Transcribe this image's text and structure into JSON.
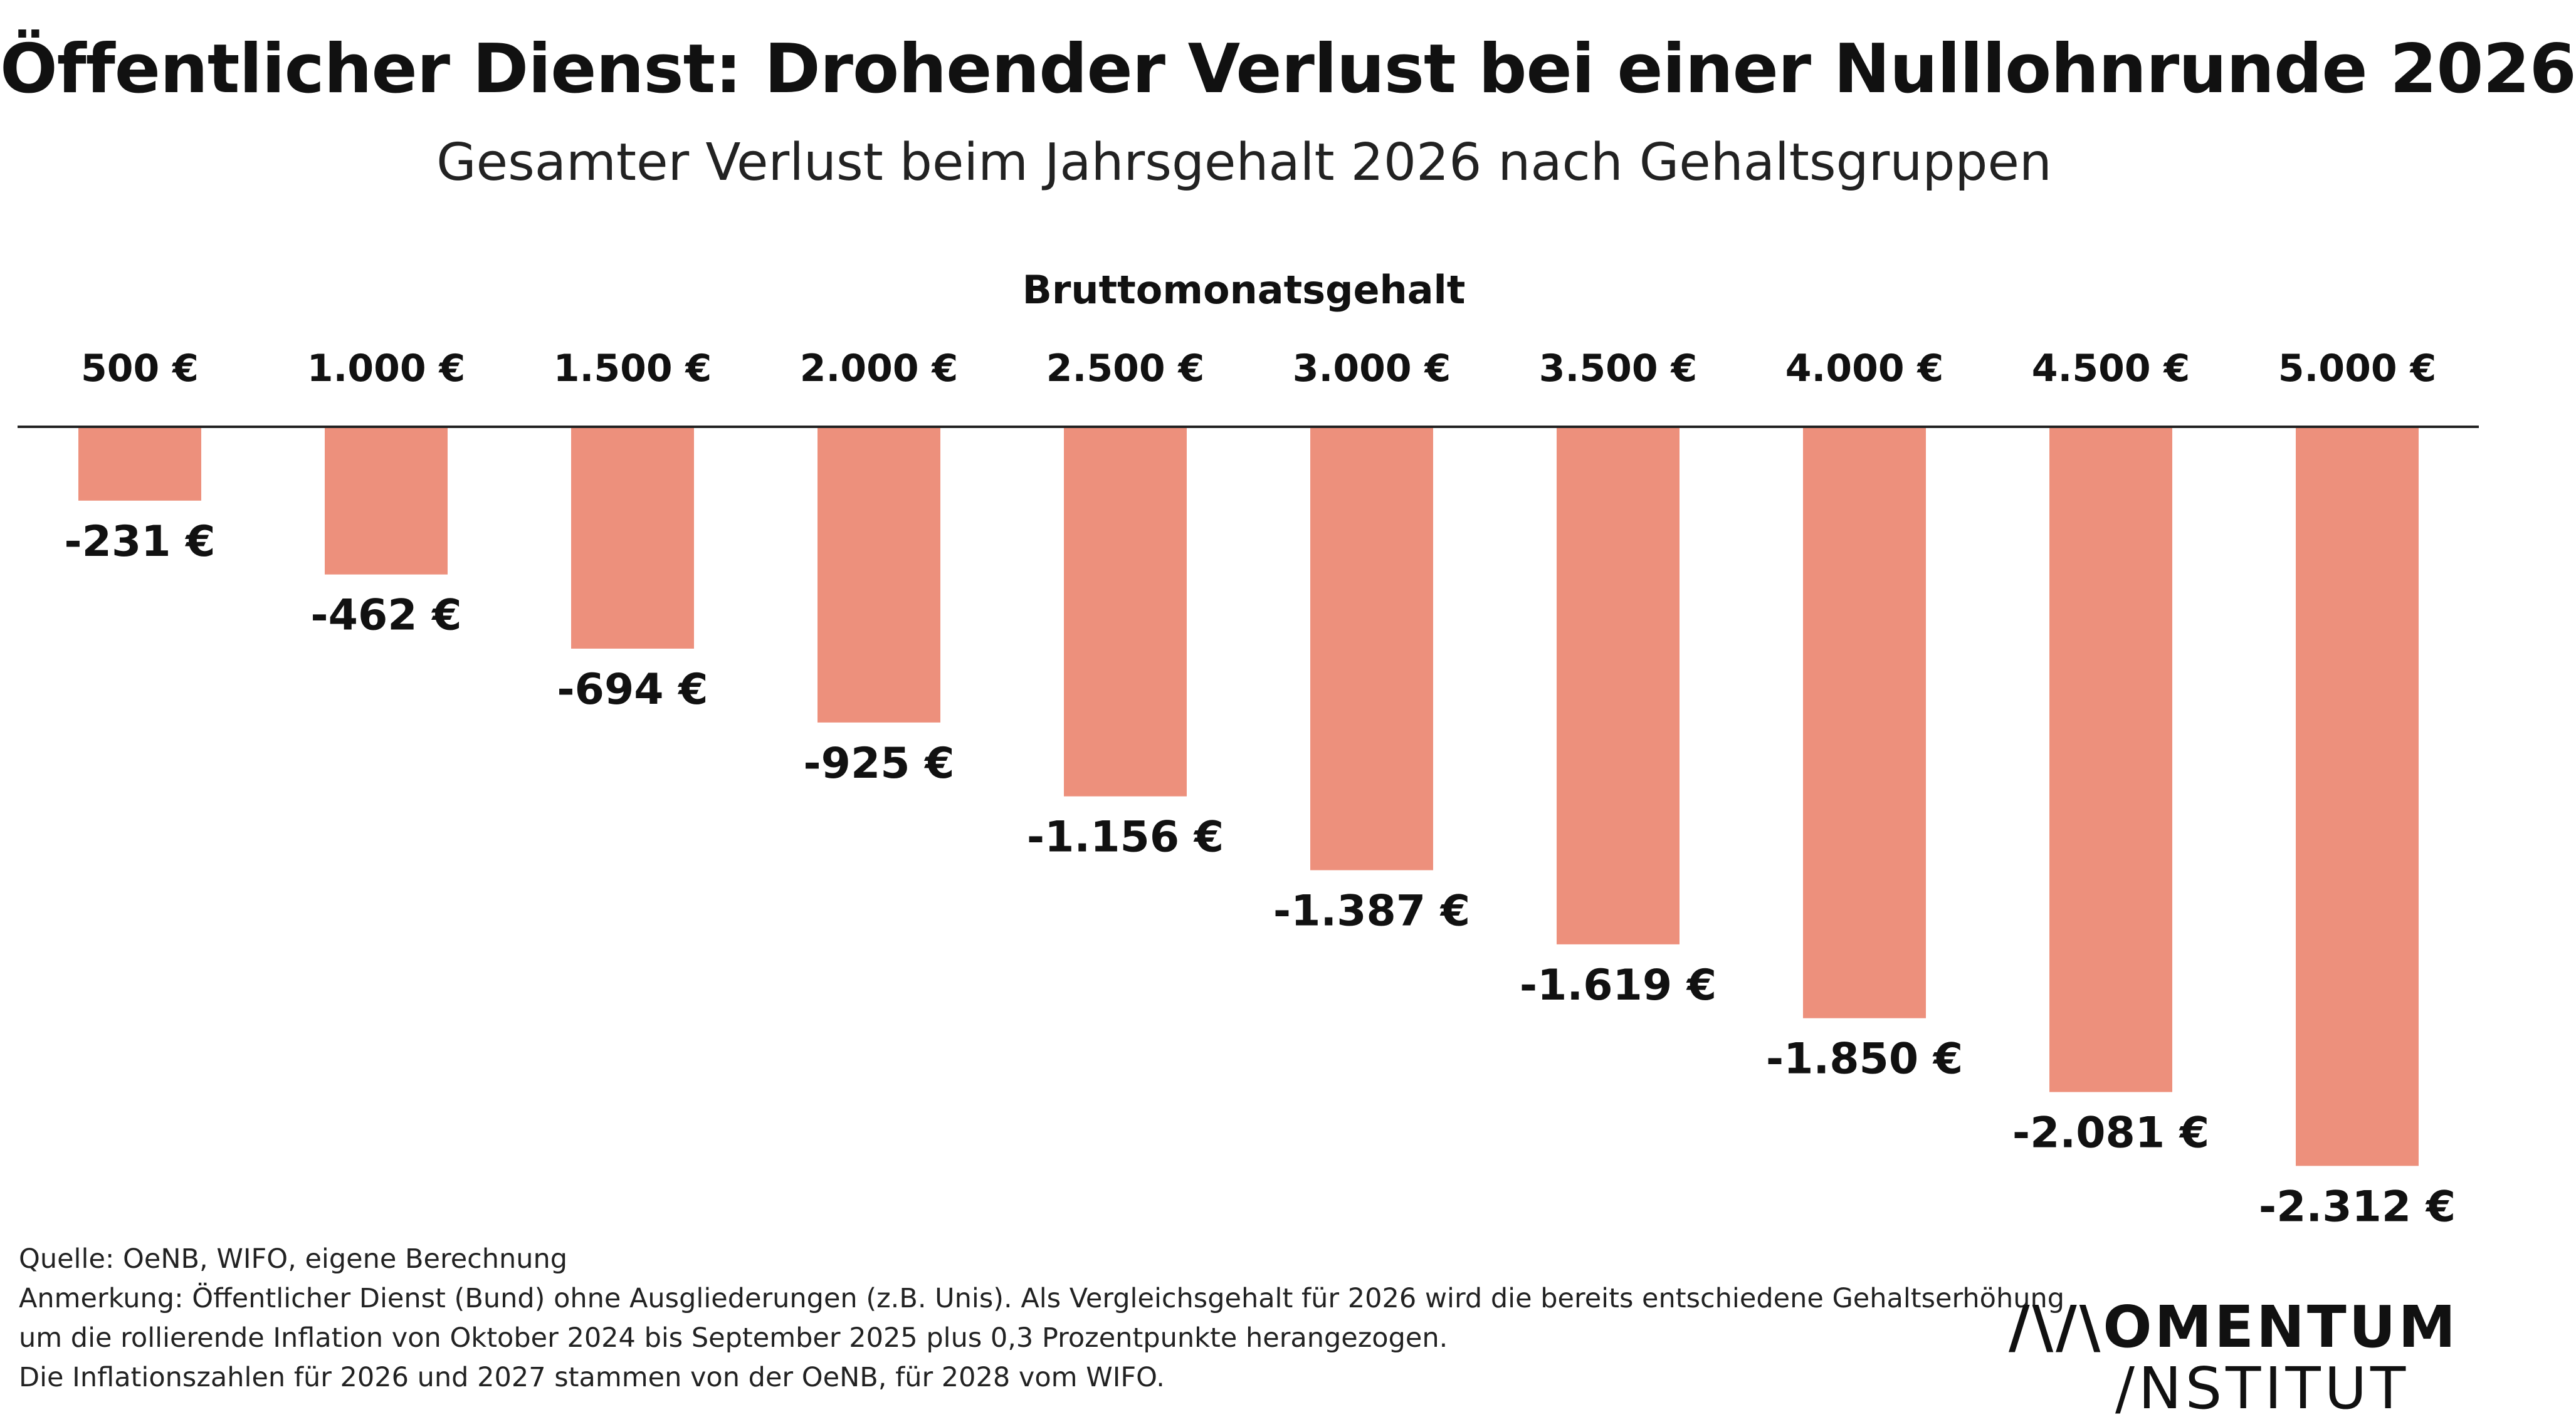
{
  "title": "Öffentlicher Dienst: Drohender Verlust bei einer Nulllohnrunde 2026",
  "subtitle": "Gesamter Verlust beim Jahrsgehalt 2026 nach Gehaltsgruppen",
  "chart_data": {
    "type": "bar",
    "orientation": "vertical, bars hanging down from top baseline",
    "x_axis_title": "Bruttomonatsgehalt",
    "categories": [
      "500 €",
      "1.000 €",
      "1.500 €",
      "2.000 €",
      "2.500 €",
      "3.000 €",
      "3.500 €",
      "4.000 €",
      "4.500 €",
      "5.000 €"
    ],
    "series": [
      {
        "values": [
          -231,
          -462,
          -694,
          -925,
          -1156,
          -1387,
          -1619,
          -1850,
          -2081,
          -2312
        ],
        "value_labels": [
          "-231 €",
          "-462 €",
          "-694 €",
          "-925 €",
          "-1.156 €",
          "-1.387 €",
          "-1.619 €",
          "-1.850 €",
          "-2.081 €",
          "-2.312 €"
        ]
      }
    ],
    "category_label_position": "top",
    "value_label_position": "below-bar",
    "grid": false,
    "legend": "none",
    "colors": {
      "bar": "#ED907C",
      "baseline": "#222222",
      "text": "#111111"
    }
  },
  "source": {
    "lines": [
      "Quelle: OeNB, WIFO, eigene Berechnung",
      "Anmerkung: Öffentlicher Dienst (Bund) ohne Ausgliederungen (z.B. Unis). Als Vergleichsgehalt für 2026 wird die bereits entschiedene Gehaltserhöhung",
      "um die rollierende Inflation von Oktober 2024 bis September 2025 plus 0,3 Prozentpunkte herangezogen.",
      "Die Inflationszahlen für 2026 und 2027 stammen von der OeNB, für 2028 vom WIFO."
    ]
  },
  "logo": {
    "line1": "/\\/\\OMENTUM",
    "line2": "/NSTITUT"
  }
}
